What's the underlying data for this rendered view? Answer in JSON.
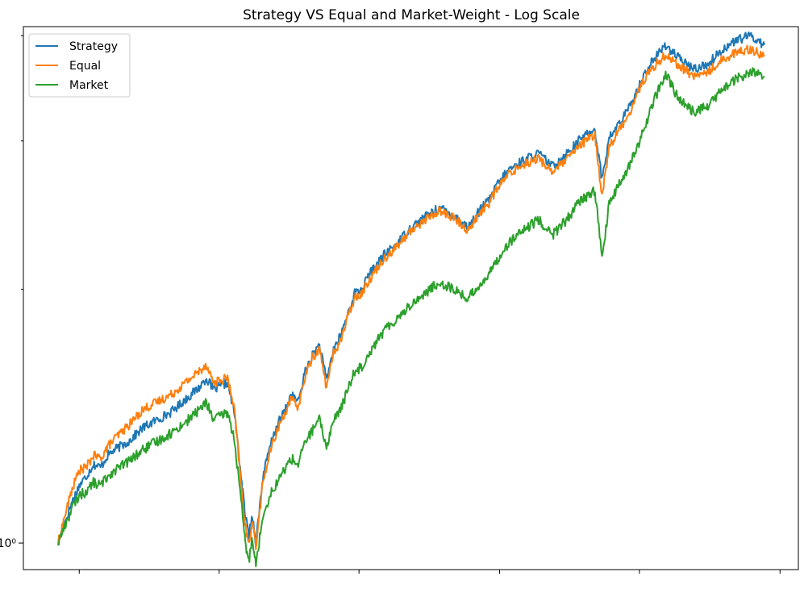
{
  "chart_data": {
    "type": "line",
    "title": "Strategy VS Equal and Market-Weight - Log Scale",
    "xlabel": "",
    "ylabel": "",
    "yscale": "log",
    "x_range": [
      0,
      1
    ],
    "ylim": [
      0.93,
      4.1
    ],
    "ytick_labels": [
      {
        "value": 1,
        "label": "10⁰"
      }
    ],
    "xtick_values": [
      0.03,
      0.228,
      0.426,
      0.625,
      0.823,
      1.022
    ],
    "grid": false,
    "legend": {
      "position": "top-left"
    },
    "series": [
      {
        "name": "Strategy",
        "color": "#1f77b4",
        "x": [
          0,
          0.01,
          0.02,
          0.03,
          0.04,
          0.05,
          0.06,
          0.07,
          0.08,
          0.1,
          0.12,
          0.14,
          0.16,
          0.18,
          0.2,
          0.21,
          0.22,
          0.24,
          0.25,
          0.26,
          0.265,
          0.27,
          0.275,
          0.28,
          0.29,
          0.3,
          0.31,
          0.32,
          0.33,
          0.34,
          0.35,
          0.36,
          0.37,
          0.38,
          0.39,
          0.4,
          0.41,
          0.42,
          0.43,
          0.44,
          0.46,
          0.48,
          0.5,
          0.52,
          0.54,
          0.56,
          0.58,
          0.6,
          0.61,
          0.62,
          0.63,
          0.64,
          0.66,
          0.68,
          0.7,
          0.72,
          0.74,
          0.76,
          0.77,
          0.78,
          0.8,
          0.81,
          0.82,
          0.83,
          0.84,
          0.86,
          0.88,
          0.9,
          0.92,
          0.94,
          0.96,
          0.98,
          1.0
        ],
        "y": [
          1.0,
          1.06,
          1.12,
          1.17,
          1.2,
          1.24,
          1.23,
          1.27,
          1.29,
          1.32,
          1.37,
          1.4,
          1.43,
          1.48,
          1.53,
          1.57,
          1.52,
          1.55,
          1.42,
          1.18,
          1.08,
          1.02,
          1.08,
          1.0,
          1.2,
          1.3,
          1.38,
          1.43,
          1.5,
          1.47,
          1.6,
          1.67,
          1.72,
          1.56,
          1.7,
          1.76,
          1.87,
          1.98,
          2.0,
          2.08,
          2.19,
          2.27,
          2.37,
          2.44,
          2.5,
          2.45,
          2.37,
          2.5,
          2.55,
          2.65,
          2.72,
          2.78,
          2.85,
          2.9,
          2.8,
          2.9,
          3.02,
          3.1,
          2.7,
          3.02,
          3.2,
          3.3,
          3.45,
          3.6,
          3.72,
          3.9,
          3.75,
          3.65,
          3.7,
          3.85,
          3.95,
          4.0,
          3.9
        ]
      },
      {
        "name": "Equal",
        "color": "#ff7f0e",
        "x": [
          0,
          0.01,
          0.02,
          0.03,
          0.04,
          0.05,
          0.06,
          0.07,
          0.08,
          0.1,
          0.12,
          0.14,
          0.16,
          0.18,
          0.2,
          0.21,
          0.22,
          0.24,
          0.25,
          0.26,
          0.265,
          0.27,
          0.275,
          0.28,
          0.29,
          0.3,
          0.31,
          0.32,
          0.33,
          0.34,
          0.35,
          0.36,
          0.37,
          0.38,
          0.39,
          0.4,
          0.41,
          0.42,
          0.43,
          0.44,
          0.46,
          0.48,
          0.5,
          0.52,
          0.54,
          0.56,
          0.58,
          0.6,
          0.61,
          0.62,
          0.63,
          0.64,
          0.66,
          0.68,
          0.7,
          0.72,
          0.74,
          0.76,
          0.77,
          0.78,
          0.8,
          0.81,
          0.82,
          0.83,
          0.84,
          0.86,
          0.88,
          0.9,
          0.92,
          0.94,
          0.96,
          0.98,
          1.0
        ],
        "y": [
          1.0,
          1.08,
          1.16,
          1.22,
          1.23,
          1.27,
          1.26,
          1.3,
          1.33,
          1.38,
          1.44,
          1.47,
          1.5,
          1.55,
          1.6,
          1.63,
          1.55,
          1.57,
          1.43,
          1.15,
          1.05,
          0.99,
          1.07,
          0.99,
          1.18,
          1.28,
          1.36,
          1.42,
          1.48,
          1.45,
          1.58,
          1.66,
          1.7,
          1.53,
          1.68,
          1.74,
          1.85,
          1.96,
          1.98,
          2.05,
          2.17,
          2.25,
          2.35,
          2.42,
          2.48,
          2.43,
          2.35,
          2.48,
          2.53,
          2.62,
          2.69,
          2.75,
          2.82,
          2.86,
          2.76,
          2.85,
          2.97,
          3.05,
          2.58,
          2.95,
          3.15,
          3.25,
          3.42,
          3.55,
          3.65,
          3.8,
          3.68,
          3.58,
          3.62,
          3.75,
          3.82,
          3.86,
          3.78
        ]
      },
      {
        "name": "Market",
        "color": "#2ca02c",
        "x": [
          0,
          0.01,
          0.02,
          0.03,
          0.04,
          0.05,
          0.06,
          0.07,
          0.08,
          0.1,
          0.12,
          0.14,
          0.16,
          0.18,
          0.2,
          0.21,
          0.22,
          0.24,
          0.25,
          0.26,
          0.265,
          0.27,
          0.275,
          0.28,
          0.29,
          0.3,
          0.31,
          0.32,
          0.33,
          0.34,
          0.35,
          0.36,
          0.37,
          0.38,
          0.39,
          0.4,
          0.41,
          0.42,
          0.43,
          0.44,
          0.46,
          0.48,
          0.5,
          0.52,
          0.54,
          0.56,
          0.58,
          0.6,
          0.61,
          0.62,
          0.63,
          0.64,
          0.66,
          0.68,
          0.7,
          0.72,
          0.74,
          0.76,
          0.77,
          0.78,
          0.8,
          0.81,
          0.82,
          0.83,
          0.84,
          0.86,
          0.88,
          0.9,
          0.92,
          0.94,
          0.96,
          0.98,
          1.0
        ],
        "y": [
          1.0,
          1.05,
          1.1,
          1.14,
          1.15,
          1.18,
          1.17,
          1.2,
          1.22,
          1.25,
          1.29,
          1.32,
          1.35,
          1.39,
          1.44,
          1.47,
          1.4,
          1.43,
          1.32,
          1.1,
          1.0,
          0.95,
          1.02,
          0.94,
          1.08,
          1.14,
          1.18,
          1.22,
          1.26,
          1.24,
          1.32,
          1.36,
          1.4,
          1.3,
          1.4,
          1.44,
          1.52,
          1.6,
          1.62,
          1.68,
          1.78,
          1.85,
          1.92,
          1.98,
          2.04,
          2.0,
          1.95,
          2.04,
          2.08,
          2.16,
          2.22,
          2.28,
          2.35,
          2.42,
          2.32,
          2.42,
          2.55,
          2.62,
          2.18,
          2.52,
          2.72,
          2.82,
          2.95,
          3.1,
          3.3,
          3.6,
          3.35,
          3.25,
          3.3,
          3.45,
          3.55,
          3.62,
          3.58
        ]
      }
    ]
  }
}
